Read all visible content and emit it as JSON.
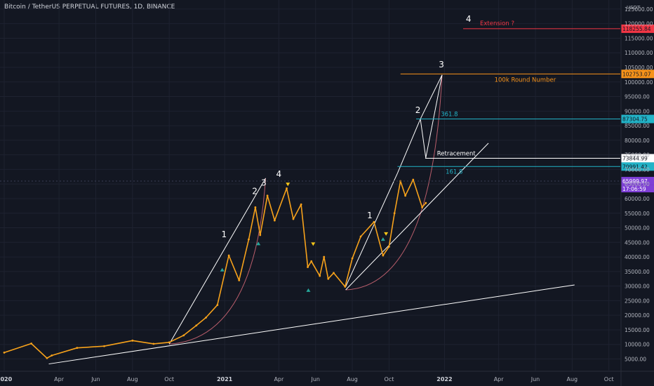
{
  "header": {
    "symbol_title": "Bitcoin / TetherUS PERPETUAL FUTURES, 1D, BINANCE",
    "unit": "USDT"
  },
  "colors": {
    "background": "#131722",
    "grid": "#1e2230",
    "axis_text": "#b2b5be",
    "annotation_white": "#ffffff",
    "orange": "#f7931a",
    "red": "#f23645",
    "teal": "#22b3c7",
    "purple": "#7e3fd6",
    "curve_pink": "#e36f7e",
    "candle_orange": "#f7a21b",
    "candle_blue": "#3f8fe6",
    "marker_green": "#26a69a",
    "marker_yellow": "#f5c518"
  },
  "chart_data": {
    "type": "line",
    "title": "Bitcoin / TetherUS PERPETUAL FUTURES, 1D, BINANCE",
    "xlabel": "",
    "ylabel": "",
    "x_ticks": [
      "2020",
      "Apr",
      "Jun",
      "Aug",
      "Oct",
      "2021",
      "Apr",
      "Jun",
      "Aug",
      "Oct",
      "2022",
      "Apr",
      "Jun",
      "Aug",
      "Oct"
    ],
    "x_tick_dates": [
      "2020-01-01",
      "2020-04-01",
      "2020-06-01",
      "2020-08-01",
      "2020-10-01",
      "2021-01-01",
      "2021-04-01",
      "2021-06-01",
      "2021-08-01",
      "2021-10-01",
      "2022-01-01",
      "2022-04-01",
      "2022-06-01",
      "2022-08-01",
      "2022-10-01"
    ],
    "y_ticks": [
      5000,
      10000,
      15000,
      20000,
      25000,
      30000,
      35000,
      40000,
      45000,
      50000,
      55000,
      60000,
      65000,
      70000,
      75000,
      80000,
      85000,
      90000,
      95000,
      100000,
      105000,
      110000,
      115000,
      120000,
      125000
    ],
    "y_tick_labels": [
      "5000.00",
      "10000.00",
      "15000.00",
      "20000.00",
      "25000.00",
      "30000.00",
      "35000.00",
      "40000.00",
      "45000.00",
      "50000.00",
      "55000.00",
      "60000.00",
      "65000.00",
      "70000.00",
      "75000.00",
      "80000.00",
      "85000.00",
      "90000.00",
      "95000.00",
      "100000.00",
      "105000.00",
      "110000.00",
      "115000.00",
      "120000.00",
      "125000.00"
    ],
    "xlim": [
      "2019-12-25",
      "2022-10-20"
    ],
    "ylim": [
      2000,
      128000
    ],
    "series": [
      {
        "color": "#f7a21b",
        "x": [
          "2020-01-01",
          "2020-02-15",
          "2020-03-12",
          "2020-03-20",
          "2020-05-01",
          "2020-06-15",
          "2020-08-01",
          "2020-09-05",
          "2020-10-01",
          "2020-10-25",
          "2020-11-15",
          "2020-12-01",
          "2020-12-20",
          "2021-01-08",
          "2021-01-25",
          "2021-02-10",
          "2021-02-21",
          "2021-03-01",
          "2021-03-13",
          "2021-03-25",
          "2021-04-14",
          "2021-04-25",
          "2021-05-08",
          "2021-05-19",
          "2021-05-25",
          "2021-06-08",
          "2021-06-15",
          "2021-06-22",
          "2021-07-01",
          "2021-07-20",
          "2021-08-01",
          "2021-08-15",
          "2021-09-06",
          "2021-09-21",
          "2021-10-01",
          "2021-10-10",
          "2021-10-20",
          "2021-10-28",
          "2021-11-10",
          "2021-11-25",
          "2021-12-01"
        ],
        "values": [
          7200,
          10300,
          5300,
          6200,
          8800,
          9400,
          11300,
          10200,
          10700,
          13100,
          16500,
          19200,
          23500,
          40500,
          32000,
          46000,
          57000,
          47500,
          61000,
          52500,
          63500,
          53000,
          58000,
          36500,
          38500,
          33500,
          40000,
          32500,
          34500,
          29800,
          39500,
          47000,
          52000,
          40500,
          43500,
          55000,
          66000,
          61000,
          66500,
          57000,
          58500
        ]
      }
    ],
    "horizontal_levels": [
      {
        "value": 118255.84,
        "label": "118255.84",
        "note": "Extension ?",
        "color": "#f23645"
      },
      {
        "value": 102753.07,
        "label": "102753.07",
        "note": "100k Round Number",
        "color": "#f7931a"
      },
      {
        "value": 87304.75,
        "label": "87304.75",
        "note": "361.8",
        "color": "#22b3c7"
      },
      {
        "value": 73844.99,
        "label": "73844.99",
        "note": "Retracement",
        "color": "#ffffff"
      },
      {
        "value": 70991.42,
        "label": "70991.42",
        "note": "161.8",
        "color": "#22b3c7"
      }
    ],
    "price_tags": [
      {
        "label": "65999.97",
        "value": 65999.97,
        "color": "#7e3fd6"
      },
      {
        "label": "17:06:59",
        "value": 62500,
        "color": "#7e3fd6"
      }
    ],
    "wave_labels": [
      {
        "text": "1",
        "x": "2020-12-31",
        "y": 46800
      },
      {
        "text": "2",
        "x": "2021-02-20",
        "y": 61500
      },
      {
        "text": "3",
        "x": "2021-03-07",
        "y": 64500
      },
      {
        "text": "4",
        "x": "2021-04-01",
        "y": 67500
      },
      {
        "text": "1",
        "x": "2021-08-30",
        "y": 53300
      },
      {
        "text": "2",
        "x": "2021-11-18",
        "y": 89300
      },
      {
        "text": "3",
        "x": "2021-12-27",
        "y": 105000
      },
      {
        "text": "4",
        "x": "2022-02-10",
        "y": 120700
      }
    ],
    "trendlines": [
      {
        "from": [
          "2020-03-15",
          3300
        ],
        "to": [
          "2022-08-05",
          30400
        ],
        "color": "#ffffff"
      },
      {
        "from": [
          "2020-10-01",
          10100
        ],
        "to": [
          "2021-03-10",
          67000
        ],
        "color": "#ffffff"
      },
      {
        "from": [
          "2021-07-21",
          28700
        ],
        "to": [
          "2022-03-15",
          79000
        ],
        "color": "#ffffff"
      },
      {
        "from": [
          "2021-07-21",
          29800
        ],
        "to": [
          "2021-10-15",
          68700
        ],
        "color": "#ffffff"
      },
      {
        "from": [
          "2021-10-15",
          68700
        ],
        "to": [
          "2021-11-22",
          87300
        ],
        "color": "#ffffff"
      },
      {
        "from": [
          "2021-11-22",
          87300
        ],
        "to": [
          "2021-12-28",
          102400
        ],
        "color": "#ffffff"
      },
      {
        "from": [
          "2021-11-22",
          87300
        ],
        "to": [
          "2021-12-01",
          74000
        ],
        "color": "#ffffff"
      },
      {
        "from": [
          "2021-12-01",
          74000
        ],
        "to": [
          "2021-12-28",
          102400
        ],
        "color": "#ffffff"
      }
    ]
  }
}
